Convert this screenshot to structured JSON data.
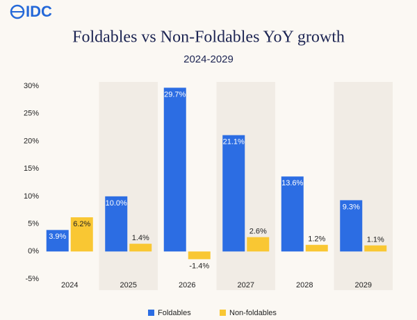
{
  "logo": "IDC",
  "chart_data": {
    "type": "bar",
    "title": "Foldables vs Non-Foldables YoY growth",
    "subtitle": "2024-2029",
    "categories": [
      "2024",
      "2025",
      "2026",
      "2027",
      "2028",
      "2029"
    ],
    "series": [
      {
        "name": "Foldables",
        "color": "#2c6de3",
        "values": [
          3.9,
          10.0,
          29.7,
          21.1,
          13.6,
          9.3
        ],
        "value_labels": [
          "3.9%",
          "10.0%",
          "29.7%",
          "21.1%",
          "13.6%",
          "9.3%"
        ]
      },
      {
        "name": "Non-foldables",
        "color": "#f9c733",
        "values": [
          6.2,
          1.4,
          -1.4,
          2.6,
          1.2,
          1.1
        ],
        "value_labels": [
          "6.2%",
          "1.4%",
          "-1.4%",
          "2.6%",
          "1.2%",
          "1.1%"
        ]
      }
    ],
    "ylim": [
      -5,
      30
    ],
    "yticks": [
      {
        "value": -5,
        "label": "-5%"
      },
      {
        "value": 0,
        "label": "0%"
      },
      {
        "value": 5,
        "label": "5%"
      },
      {
        "value": 10,
        "label": "10%"
      },
      {
        "value": 15,
        "label": "15%"
      },
      {
        "value": 20,
        "label": "20%"
      },
      {
        "value": 25,
        "label": "25%"
      },
      {
        "value": 30,
        "label": "30%"
      }
    ],
    "legend": "bottom"
  }
}
